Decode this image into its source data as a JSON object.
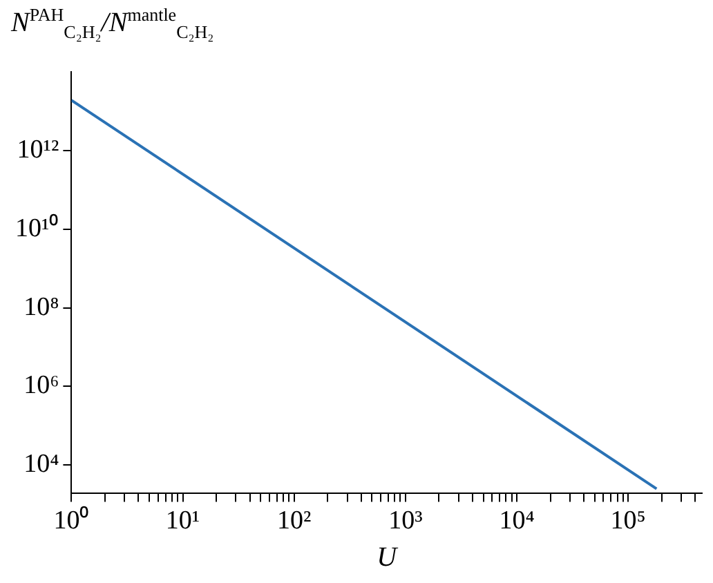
{
  "chart_data": {
    "type": "line",
    "ylabel": "N$^{PAH}$$_{C₂H₂}$/N$^{mantle}$$_{C₂H₂}$",
    "xlabel": "U",
    "log": "xy",
    "x": [
      1,
      180000
    ],
    "series": [
      {
        "color": "#2a72b5",
        "values": [
          19000000000000.0,
          2500.0
        ]
      }
    ],
    "xlim": [
      1,
      460000
    ],
    "ylim": [
      1900,
      100000000000000.0
    ],
    "xticks": [
      {
        "value": 1,
        "label": "10⁰"
      },
      {
        "value": 2,
        "label": null
      },
      {
        "value": 3,
        "label": null
      },
      {
        "value": 4,
        "label": null
      },
      {
        "value": 5,
        "label": null
      },
      {
        "value": 6,
        "label": null
      },
      {
        "value": 7,
        "label": null
      },
      {
        "value": 8,
        "label": null
      },
      {
        "value": 9,
        "label": null
      },
      {
        "value": 10,
        "label": "10¹"
      },
      {
        "value": 20,
        "label": null
      },
      {
        "value": 30,
        "label": null
      },
      {
        "value": 40,
        "label": null
      },
      {
        "value": 50,
        "label": null
      },
      {
        "value": 60,
        "label": null
      },
      {
        "value": 70,
        "label": null
      },
      {
        "value": 80,
        "label": null
      },
      {
        "value": 90,
        "label": null
      },
      {
        "value": 100,
        "label": "10²"
      },
      {
        "value": 200,
        "label": null
      },
      {
        "value": 300,
        "label": null
      },
      {
        "value": 400,
        "label": null
      },
      {
        "value": 500,
        "label": null
      },
      {
        "value": 600,
        "label": null
      },
      {
        "value": 700,
        "label": null
      },
      {
        "value": 800,
        "label": null
      },
      {
        "value": 900,
        "label": null
      },
      {
        "value": 1000,
        "label": "10³"
      },
      {
        "value": 2000,
        "label": null
      },
      {
        "value": 3000,
        "label": null
      },
      {
        "value": 4000,
        "label": null
      },
      {
        "value": 5000,
        "label": null
      },
      {
        "value": 6000,
        "label": null
      },
      {
        "value": 7000,
        "label": null
      },
      {
        "value": 8000,
        "label": null
      },
      {
        "value": 9000,
        "label": null
      },
      {
        "value": 10000,
        "label": "10⁴"
      },
      {
        "value": 20000,
        "label": null
      },
      {
        "value": 30000,
        "label": null
      },
      {
        "value": 40000,
        "label": null
      },
      {
        "value": 50000,
        "label": null
      },
      {
        "value": 60000,
        "label": null
      },
      {
        "value": 70000,
        "label": null
      },
      {
        "value": 80000,
        "label": null
      },
      {
        "value": 90000,
        "label": null
      },
      {
        "value": 100000,
        "label": "10⁵"
      },
      {
        "value": 200000,
        "label": null
      },
      {
        "value": 300000,
        "label": null
      },
      {
        "value": 400000,
        "label": null
      }
    ],
    "yticks": [
      {
        "value": 10000.0,
        "label": "10⁴"
      },
      {
        "value": 1000000.0,
        "label": "10⁶"
      },
      {
        "value": 100000000.0,
        "label": "10⁸"
      },
      {
        "value": 10000000000.0,
        "label": "10¹⁰"
      },
      {
        "value": 1000000000000.0,
        "label": "10¹²"
      }
    ],
    "grid": false,
    "legend": false,
    "marker": "none",
    "line_style": "solid"
  }
}
